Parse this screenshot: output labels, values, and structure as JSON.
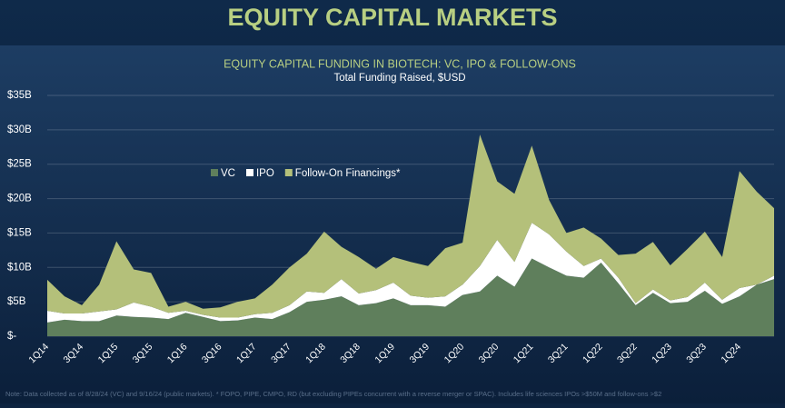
{
  "page_title": "EQUITY CAPITAL MARKETS",
  "chart_data": {
    "type": "stacked-area",
    "title": "EQUITY CAPITAL FUNDING IN BIOTECH: VC, IPO & FOLLOW-ONS",
    "subtitle": "Total Funding Raised, $USD",
    "categories": [
      "1Q14",
      null,
      "3Q14",
      null,
      "1Q15",
      null,
      "3Q15",
      null,
      "1Q16",
      null,
      "3Q16",
      null,
      "1Q17",
      null,
      "3Q17",
      null,
      "1Q18",
      null,
      "3Q18",
      null,
      "1Q19",
      null,
      "3Q19",
      null,
      "1Q20",
      null,
      "3Q20",
      null,
      "1Q21",
      null,
      "3Q21",
      null,
      "1Q22",
      null,
      "3Q22",
      null,
      "1Q23",
      null,
      "3Q23",
      null,
      "1Q24",
      null,
      null
    ],
    "series": [
      {
        "name": "VC",
        "color": "#5f7f5c",
        "values": [
          2.0,
          2.4,
          2.2,
          2.2,
          3.0,
          2.8,
          2.7,
          2.5,
          3.4,
          2.8,
          2.2,
          2.3,
          2.7,
          2.5,
          3.5,
          5.0,
          5.3,
          5.8,
          4.5,
          4.8,
          5.5,
          4.5,
          4.5,
          4.3,
          6.0,
          6.5,
          8.8,
          7.2,
          11.3,
          10.0,
          8.8,
          8.5,
          10.7,
          7.7,
          4.5,
          6.3,
          4.8,
          5.0,
          6.6,
          4.7,
          5.8,
          7.5,
          8.3
        ]
      },
      {
        "name": "IPO",
        "color": "#ffffff",
        "values": [
          1.7,
          0.9,
          1.1,
          1.4,
          0.9,
          2.1,
          1.6,
          0.9,
          0.3,
          0.3,
          0.5,
          0.4,
          0.5,
          0.9,
          1.0,
          1.5,
          1.0,
          2.5,
          1.7,
          1.9,
          2.3,
          1.4,
          1.1,
          1.5,
          1.5,
          3.7,
          5.2,
          3.6,
          5.2,
          4.8,
          3.5,
          1.7,
          0.6,
          0.8,
          0.3,
          0.5,
          0.4,
          0.7,
          1.2,
          0.6,
          1.2,
          0.0,
          0.5
        ]
      },
      {
        "name": "Follow-On Financings*",
        "color": "#b4c07a",
        "values": [
          4.5,
          2.5,
          1.2,
          3.9,
          9.9,
          4.8,
          4.9,
          0.9,
          1.3,
          0.9,
          1.5,
          2.3,
          2.3,
          4.1,
          5.5,
          5.5,
          8.9,
          4.7,
          5.3,
          3.1,
          3.7,
          4.9,
          4.6,
          7.0,
          6.1,
          19.1,
          8.5,
          9.9,
          11.2,
          5.0,
          2.7,
          5.6,
          2.9,
          3.3,
          7.2,
          6.9,
          5.1,
          7.0,
          7.4,
          6.2,
          17.0,
          13.5,
          9.8
        ]
      }
    ],
    "ylim": [
      0,
      35
    ],
    "yticks": [
      {
        "value": 0,
        "label": "$-"
      },
      {
        "value": 5,
        "label": "$5B"
      },
      {
        "value": 10,
        "label": "$10B"
      },
      {
        "value": 15,
        "label": "$15B"
      },
      {
        "value": 20,
        "label": "$20B"
      },
      {
        "value": 25,
        "label": "$25B"
      },
      {
        "value": 30,
        "label": "$30B"
      },
      {
        "value": 35,
        "label": "$35B"
      }
    ],
    "grid": true,
    "note": "Note: Data collected as of 8/28/24 (VC) and 9/16/24 (public markets).   * FOPO, PIPE, CMPO, RD (but excluding PIPEs concurrent with a reverse merger or SPAC). Includes life sciences IPOs >$50M and follow-ons >$2"
  }
}
